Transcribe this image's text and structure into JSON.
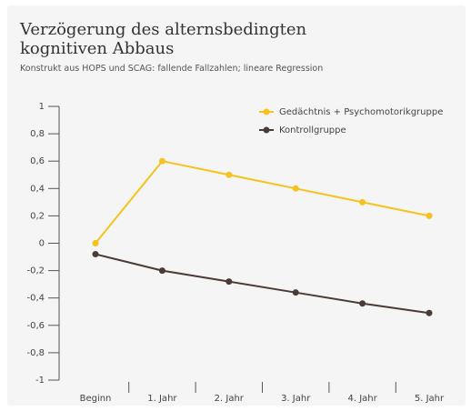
{
  "chart_data": {
    "type": "line",
    "title": "Verzögerung des alternsbedingten kognitiven Abbaus",
    "subtitle": "Konstrukt aus HOPS und SCAG: fallende Fallzahlen; lineare Regression",
    "categories": [
      "Beginn",
      "1. Jahr",
      "2. Jahr",
      "3. Jahr",
      "4. Jahr",
      "5. Jahr"
    ],
    "series": [
      {
        "name": "Gedächtnis + Psychomotorikgruppe",
        "color": "#f6c21c",
        "values": [
          0,
          0.6,
          0.5,
          0.4,
          0.3,
          0.2
        ]
      },
      {
        "name": "Kontrollgruppe",
        "color": "#4b3b36",
        "values": [
          -0.08,
          -0.2,
          -0.28,
          -0.36,
          -0.44,
          -0.51
        ]
      }
    ],
    "ylim": [
      -1,
      1
    ],
    "yticks": [
      1,
      {
        "value": 0.8,
        "label": "0,8"
      },
      {
        "value": 0.6,
        "label": "0,6"
      },
      {
        "value": 0.4,
        "label": "0,4"
      },
      {
        "value": 0.2,
        "label": "0,2"
      },
      0,
      {
        "value": -0.2,
        "label": "-0,2"
      },
      {
        "value": -0.4,
        "label": "-0,4"
      },
      {
        "value": -0.6,
        "label": "-0,6"
      },
      {
        "value": -0.8,
        "label": "-0,8"
      },
      -1
    ],
    "legend": "top-right"
  }
}
